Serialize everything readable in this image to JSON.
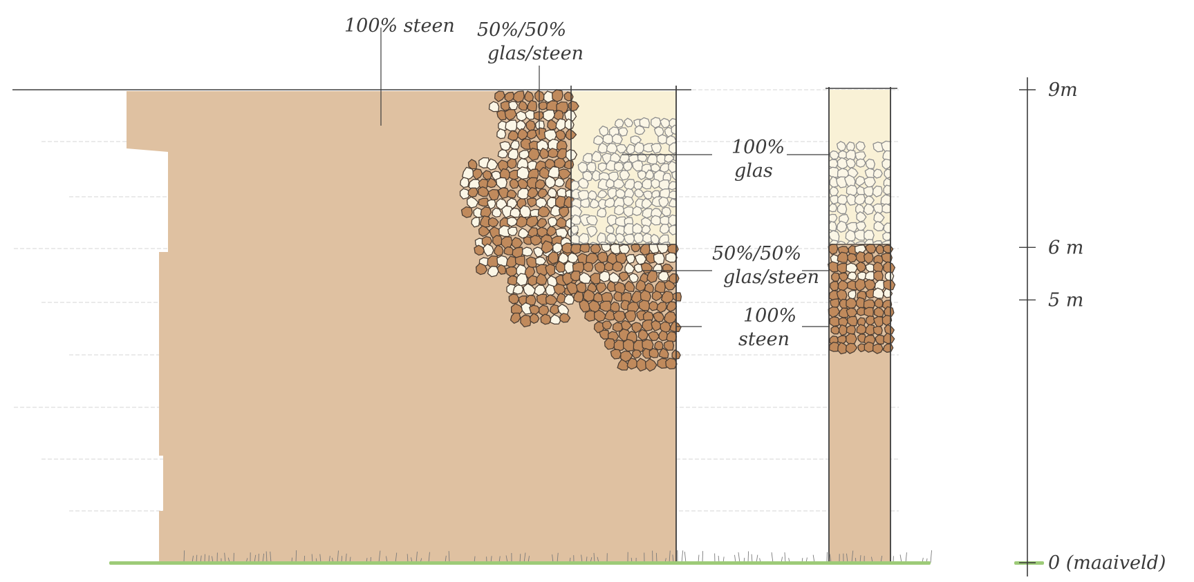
{
  "colors": {
    "paper": "#ffffff",
    "stone_fill": "#dfc1a1",
    "stone_stroke": "#4a3d33",
    "stone_pebble_fill": "#c08a5c",
    "glass_fill": "#f9f1d6",
    "glass_pebble_fill": "#fbf6e6",
    "glass_stroke": "#8c8c8c",
    "pencil": "#3b3b3b",
    "grass": "#9dcb78",
    "guide_lines": "#c9c9c9"
  },
  "labels": {
    "stone_100_top": "100% steen",
    "mix_top_line1": "50%/50%",
    "mix_top_line2": "glas/steen",
    "glass_100_line1": "100%",
    "glass_100_line2": "glas",
    "mix_mid_line1": "50%/50%",
    "mix_mid_line2": "glas/steen",
    "stone_100_mid_line1": "100%",
    "stone_100_mid_line2": "steen"
  },
  "scale": {
    "ticks": [
      {
        "height_m": 9,
        "label": "9m"
      },
      {
        "height_m": 6,
        "label": "6 m"
      },
      {
        "height_m": 5,
        "label": "5 m"
      },
      {
        "height_m": 0,
        "label": "0 (maaiveld)"
      }
    ]
  }
}
